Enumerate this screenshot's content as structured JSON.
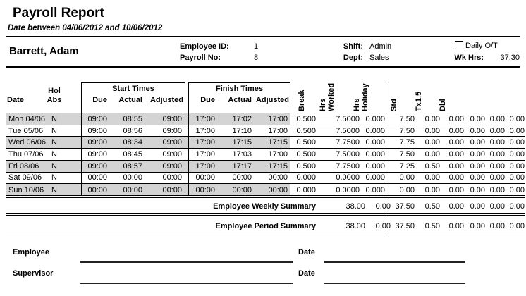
{
  "report": {
    "title": "Payroll Report",
    "subtitle": "Date between 04/06/2012 and 10/06/2012"
  },
  "employee": {
    "name": "Barrett, Adam",
    "employee_id_label": "Employee ID:",
    "employee_id": "1",
    "payroll_no_label": "Payroll No:",
    "payroll_no": "8",
    "shift_label": "Shift:",
    "shift": "Admin",
    "dept_label": "Dept:",
    "dept": "Sales",
    "daily_ot_label": "Daily O/T",
    "daily_ot_checked": false,
    "wk_hrs_label": "Wk Hrs:",
    "wk_hrs": "37:30"
  },
  "table": {
    "headers": {
      "date": "Date",
      "hol": "Hol",
      "abs": "Abs",
      "start_times": "Start Times",
      "finish_times": "Finish Times",
      "start_due": "Due",
      "start_actual": "Actual",
      "start_adjusted": "Adjusted",
      "finish_due": "Due",
      "finish_actual": "Actual",
      "finish_adjusted": "Adjusted",
      "break": "Break",
      "hrs": "Hrs",
      "worked": "Worked",
      "hrs2": "Hrs",
      "holiday": "Holiday",
      "std": "Std",
      "tx15": "Tx1.5",
      "dbl": "Dbl"
    },
    "rows": [
      {
        "date": "Mon 04/06",
        "hol": "N",
        "start_due": "09:00",
        "start_actual": "08:55",
        "start_adjusted": "09:00",
        "finish_due": "17:00",
        "finish_actual": "17:02",
        "finish_adjusted": "17:00",
        "brk": "0.500",
        "hrs_worked": "7.5000",
        "hrs_holiday": "0.000",
        "std": "7.50",
        "tx15": "0.00",
        "dbl": "0.00",
        "c4": "0.00",
        "c5": "0.00",
        "c6": "0.00",
        "shaded": true
      },
      {
        "date": "Tue 05/06",
        "hol": "N",
        "start_due": "09:00",
        "start_actual": "08:56",
        "start_adjusted": "09:00",
        "finish_due": "17:00",
        "finish_actual": "17:10",
        "finish_adjusted": "17:00",
        "brk": "0.500",
        "hrs_worked": "7.5000",
        "hrs_holiday": "0.000",
        "std": "7.50",
        "tx15": "0.00",
        "dbl": "0.00",
        "c4": "0.00",
        "c5": "0.00",
        "c6": "0.00",
        "shaded": false
      },
      {
        "date": "Wed 06/06",
        "hol": "N",
        "start_due": "09:00",
        "start_actual": "08:34",
        "start_adjusted": "09:00",
        "finish_due": "17:00",
        "finish_actual": "17:15",
        "finish_adjusted": "17:15",
        "brk": "0.500",
        "hrs_worked": "7.7500",
        "hrs_holiday": "0.000",
        "std": "7.75",
        "tx15": "0.00",
        "dbl": "0.00",
        "c4": "0.00",
        "c5": "0.00",
        "c6": "0.00",
        "shaded": true
      },
      {
        "date": "Thu 07/06",
        "hol": "N",
        "start_due": "09:00",
        "start_actual": "08:45",
        "start_adjusted": "09:00",
        "finish_due": "17:00",
        "finish_actual": "17:03",
        "finish_adjusted": "17:00",
        "brk": "0.500",
        "hrs_worked": "7.5000",
        "hrs_holiday": "0.000",
        "std": "7.50",
        "tx15": "0.00",
        "dbl": "0.00",
        "c4": "0.00",
        "c5": "0.00",
        "c6": "0.00",
        "shaded": false
      },
      {
        "date": "Fri 08/06",
        "hol": "N",
        "start_due": "09:00",
        "start_actual": "08:57",
        "start_adjusted": "09:00",
        "finish_due": "17:00",
        "finish_actual": "17:17",
        "finish_adjusted": "17:15",
        "brk": "0.500",
        "hrs_worked": "7.7500",
        "hrs_holiday": "0.000",
        "std": "7.25",
        "tx15": "0.50",
        "dbl": "0.00",
        "c4": "0.00",
        "c5": "0.00",
        "c6": "0.00",
        "shaded": true
      },
      {
        "date": "Sat 09/06",
        "hol": "N",
        "start_due": "00:00",
        "start_actual": "00:00",
        "start_adjusted": "00:00",
        "finish_due": "00:00",
        "finish_actual": "00:00",
        "finish_adjusted": "00:00",
        "brk": "0.000",
        "hrs_worked": "0.0000",
        "hrs_holiday": "0.000",
        "std": "0.00",
        "tx15": "0.00",
        "dbl": "0.00",
        "c4": "0.00",
        "c5": "0.00",
        "c6": "0.00",
        "shaded": false
      },
      {
        "date": "Sun 10/06",
        "hol": "N",
        "start_due": "00:00",
        "start_actual": "00:00",
        "start_adjusted": "00:00",
        "finish_due": "00:00",
        "finish_actual": "00:00",
        "finish_adjusted": "00:00",
        "brk": "0.000",
        "hrs_worked": "0.0000",
        "hrs_holiday": "0.000",
        "std": "0.00",
        "tx15": "0.00",
        "dbl": "0.00",
        "c4": "0.00",
        "c5": "0.00",
        "c6": "0.00",
        "shaded": true
      }
    ]
  },
  "summary": {
    "weekly": {
      "label": "Employee Weekly Summary",
      "hrs_worked": "38.00",
      "hrs_holiday": "0.00",
      "std": "37.50",
      "tx15": "0.50",
      "dbl": "0.00",
      "c4": "0.00",
      "c5": "0.00",
      "c6": "0.00"
    },
    "period": {
      "label": "Employee Period Summary",
      "hrs_worked": "38.00",
      "hrs_holiday": "0.00",
      "std": "37.50",
      "tx15": "0.50",
      "dbl": "0.00",
      "c4": "0.00",
      "c5": "0.00",
      "c6": "0.00"
    }
  },
  "signatures": {
    "employee_label": "Employee",
    "supervisor_label": "Supervisor",
    "date_label_1": "Date",
    "date_label_2": "Date"
  },
  "colors": {
    "row_shade": "#d4d4d4",
    "text": "#000000",
    "line": "#000000"
  }
}
